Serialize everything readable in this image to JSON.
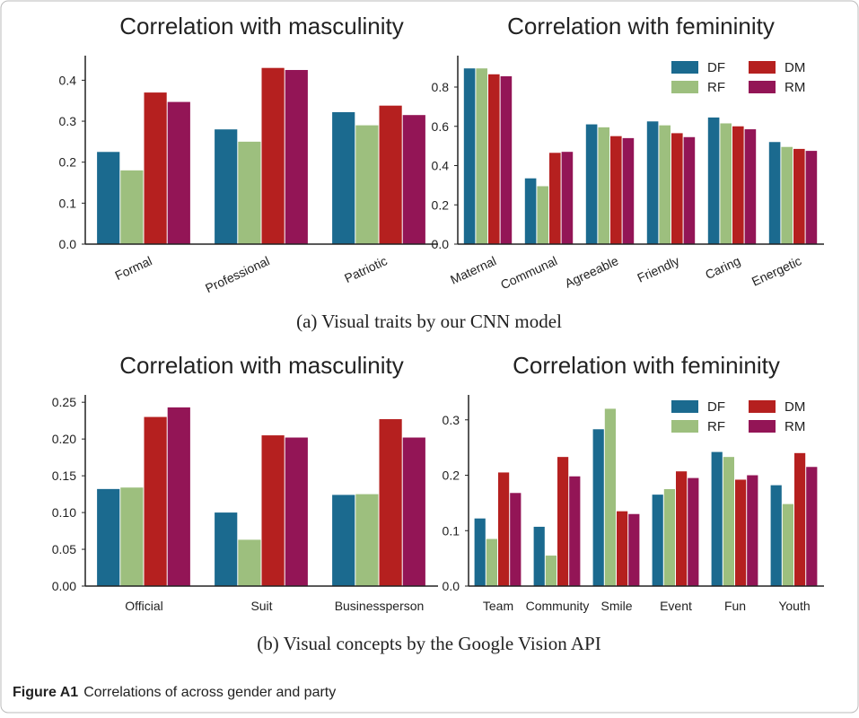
{
  "chart_data": [
    {
      "type": "bar",
      "title": "Correlation with masculinity",
      "categories": [
        "Formal",
        "Professional",
        "Patriotic"
      ],
      "series": [
        {
          "name": "DF",
          "color": "#1b6a8f",
          "values": [
            0.225,
            0.28,
            0.322
          ]
        },
        {
          "name": "RF",
          "color": "#9dbf7e",
          "values": [
            0.18,
            0.25,
            0.29
          ]
        },
        {
          "name": "DM",
          "color": "#b5201f",
          "values": [
            0.37,
            0.43,
            0.338
          ]
        },
        {
          "name": "RM",
          "color": "#931556",
          "values": [
            0.347,
            0.425,
            0.315
          ]
        }
      ],
      "ylim": [
        0,
        0.46
      ],
      "yticks": [
        {
          "value": 0,
          "label": "0.0"
        },
        0.1,
        0.2,
        0.3,
        0.4
      ]
    },
    {
      "type": "bar",
      "title": "Correlation with femininity",
      "categories": [
        "Maternal",
        "Communal",
        "Agreeable",
        "Friendly",
        "Caring",
        "Energetic"
      ],
      "series": [
        {
          "name": "DF",
          "color": "#1b6a8f",
          "values": [
            0.895,
            0.335,
            0.61,
            0.625,
            0.645,
            0.52
          ]
        },
        {
          "name": "RF",
          "color": "#9dbf7e",
          "values": [
            0.895,
            0.295,
            0.595,
            0.605,
            0.615,
            0.495
          ]
        },
        {
          "name": "DM",
          "color": "#b5201f",
          "values": [
            0.865,
            0.465,
            0.55,
            0.565,
            0.6,
            0.485
          ]
        },
        {
          "name": "RM",
          "color": "#931556",
          "values": [
            0.855,
            0.47,
            0.54,
            0.545,
            0.585,
            0.475
          ]
        }
      ],
      "ylim": [
        0,
        0.96
      ],
      "yticks": [
        {
          "value": 0,
          "label": "0.0"
        },
        0.2,
        0.4,
        0.6,
        0.8
      ],
      "legend": "upper right"
    },
    {
      "type": "bar",
      "title": "Correlation with masculinity",
      "categories": [
        "Official",
        "Suit",
        "Businessperson"
      ],
      "series": [
        {
          "name": "DF",
          "color": "#1b6a8f",
          "values": [
            0.132,
            0.1,
            0.124
          ]
        },
        {
          "name": "RF",
          "color": "#9dbf7e",
          "values": [
            0.134,
            0.063,
            0.125
          ]
        },
        {
          "name": "DM",
          "color": "#b5201f",
          "values": [
            0.23,
            0.205,
            0.227
          ]
        },
        {
          "name": "RM",
          "color": "#931556",
          "values": [
            0.243,
            0.202,
            0.202
          ]
        }
      ],
      "ylim": [
        0,
        0.26
      ],
      "yticks": [
        {
          "value": 0,
          "label": "0.00"
        },
        0.05,
        {
          "value": 0.1,
          "label": "0.10"
        },
        0.15,
        {
          "value": 0.2,
          "label": "0.20"
        },
        0.25
      ]
    },
    {
      "type": "bar",
      "title": "Correlation with femininity",
      "categories": [
        "Team",
        "Community",
        "Smile",
        "Event",
        "Fun",
        "Youth"
      ],
      "series": [
        {
          "name": "DF",
          "color": "#1b6a8f",
          "values": [
            0.122,
            0.107,
            0.283,
            0.165,
            0.242,
            0.182
          ]
        },
        {
          "name": "RF",
          "color": "#9dbf7e",
          "values": [
            0.085,
            0.055,
            0.32,
            0.175,
            0.233,
            0.148
          ]
        },
        {
          "name": "DM",
          "color": "#b5201f",
          "values": [
            0.205,
            0.233,
            0.135,
            0.207,
            0.192,
            0.24
          ]
        },
        {
          "name": "RM",
          "color": "#931556",
          "values": [
            0.168,
            0.198,
            0.13,
            0.195,
            0.2,
            0.215
          ]
        }
      ],
      "ylim": [
        0,
        0.345
      ],
      "yticks": [
        {
          "value": 0,
          "label": "0.0"
        },
        0.1,
        0.2,
        0.3
      ],
      "legend": "upper right"
    }
  ],
  "subcaptions": [
    "(a) Visual traits by our CNN model",
    "(b) Visual concepts by the Google Vision API"
  ],
  "figure_caption": {
    "label": "Figure A1",
    "text": "Correlations of across gender and party"
  }
}
